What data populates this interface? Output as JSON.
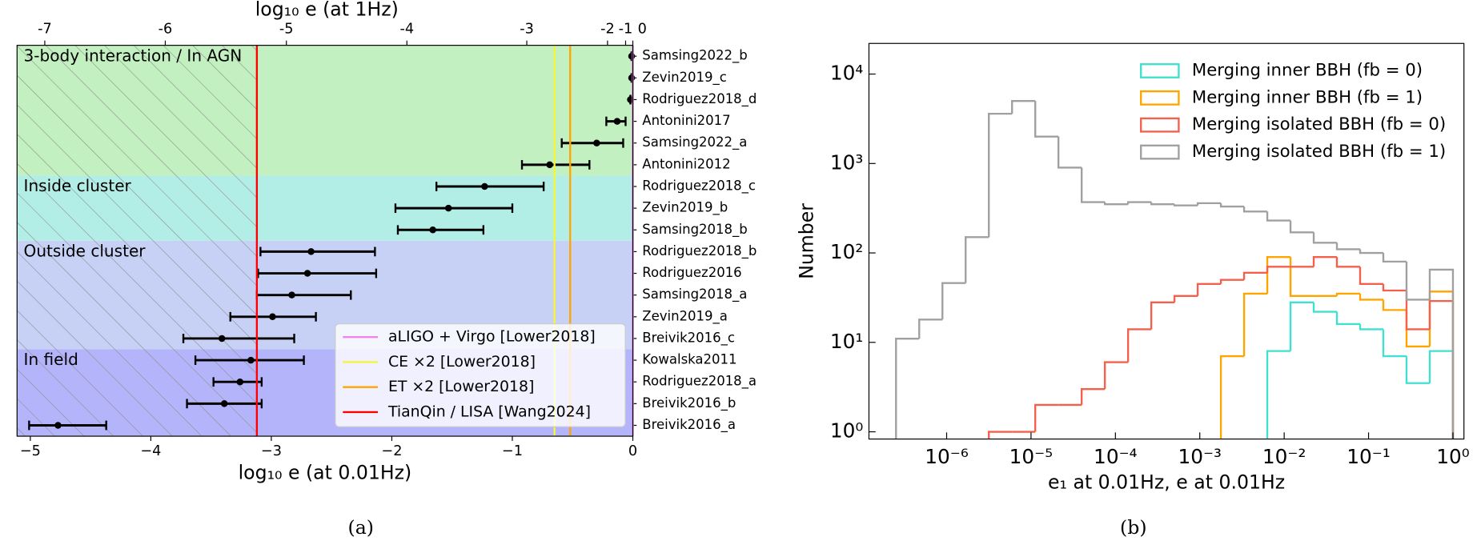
{
  "chart_data": [
    {
      "type": "errorbar",
      "xlabel": "log₁₀ e (at 0.01Hz)",
      "x2label": "log₁₀ e (at 1Hz)",
      "panel": "(a)",
      "xlim": [
        -5.11,
        0
      ],
      "xticks": [
        {
          "value": -5,
          "label": "−5"
        },
        {
          "value": -4,
          "label": "−4"
        },
        {
          "value": -3,
          "label": "−3"
        },
        {
          "value": -2,
          "label": "−2"
        },
        {
          "value": -1,
          "label": "−1"
        },
        0
      ],
      "x2ticks": [
        {
          "value": -4.88,
          "label": "-7"
        },
        {
          "value": -3.88,
          "label": "-6"
        },
        {
          "value": -2.875,
          "label": "-5"
        },
        {
          "value": -1.875,
          "label": "-4"
        },
        {
          "value": -0.88,
          "label": "-3"
        },
        {
          "value": -0.21,
          "label": "-2"
        },
        {
          "value": -0.06,
          "label": "-1"
        },
        0
      ],
      "groups": [
        {
          "name": "3-body interaction / In AGN",
          "color": "#c3f0c0",
          "categories": [
            "Samsing2022_b",
            "Zevin2019_c",
            "Rodriguez2018_d",
            "Antonini2017",
            "Samsing2022_a",
            "Antonini2012"
          ],
          "values": [
            -0.01,
            -0.01,
            -0.02,
            -0.13,
            -0.3,
            -0.69
          ],
          "lower": [
            -0.01,
            -0.01,
            -0.02,
            -0.22,
            -0.59,
            -0.92
          ],
          "upper": [
            -0.01,
            -0.01,
            -0.02,
            -0.06,
            -0.08,
            -0.36
          ]
        },
        {
          "name": "Inside cluster",
          "color": "#b3eee6",
          "categories": [
            "Rodriguez2018_c",
            "Zevin2019_b",
            "Samsing2018_b"
          ],
          "values": [
            -1.23,
            -1.53,
            -1.66
          ],
          "lower": [
            -1.63,
            -1.97,
            -1.95
          ],
          "upper": [
            -0.74,
            -1.0,
            -1.24
          ]
        },
        {
          "name": "Outside cluster",
          "color": "#c6d1f5",
          "categories": [
            "Rodriguez2018_b",
            "Rodriguez2016",
            "Samsing2018_a",
            "Zevin2019_a",
            "Breivik2016_c"
          ],
          "values": [
            -2.67,
            -2.7,
            -2.83,
            -2.99,
            -3.41
          ],
          "lower": [
            -3.09,
            -3.11,
            -3.12,
            -3.34,
            -3.73
          ],
          "upper": [
            -2.14,
            -2.13,
            -2.34,
            -2.63,
            -2.81
          ]
        },
        {
          "name": "In field",
          "color": "#b4b4fa",
          "categories": [
            "Kowalska2011",
            "Rodriguez2018_a",
            "Breivik2016_b",
            "Breivik2016_a"
          ],
          "values": [
            -3.17,
            -3.26,
            -3.39,
            -4.77
          ],
          "lower": [
            -3.63,
            -3.48,
            -3.7,
            -5.01
          ],
          "upper": [
            -2.73,
            -3.08,
            -3.08,
            -4.37
          ]
        }
      ],
      "lines": [
        {
          "name": "aLIGO + Virgo [Lower2018]",
          "color": "#ee82ee",
          "value": 0
        },
        {
          "name": "CE ×2 [Lower2018]",
          "color": "#f5f53a",
          "value": -0.65
        },
        {
          "name": "ET ×2 [Lower2018]",
          "color": "#ffa500",
          "value": -0.52
        },
        {
          "name": "TianQin / LISA [Wang2024]",
          "color": "#ff0000",
          "value": -3.12
        }
      ],
      "legend": "lower right"
    },
    {
      "type": "histogram",
      "xlabel": "e₁ at 0.01Hz, e at 0.01Hz",
      "ylabel": "Number",
      "panel": "(b)",
      "xscale": "log",
      "yscale": "log",
      "xlim": [
        1.2e-07,
        1.35
      ],
      "ylim": [
        0.83,
        22000
      ],
      "xticks": [
        {
          "value": 1e-06,
          "label": "10⁻⁶"
        },
        {
          "value": 1e-05,
          "label": "10⁻⁵"
        },
        {
          "value": 0.0001,
          "label": "10⁻⁴"
        },
        {
          "value": 0.001,
          "label": "10⁻³"
        },
        {
          "value": 0.01,
          "label": "10⁻²"
        },
        {
          "value": 0.1,
          "label": "10⁻¹"
        },
        {
          "value": 1,
          "label": "10⁰"
        }
      ],
      "yticks": [
        {
          "value": 1,
          "label": "10⁰"
        },
        {
          "value": 10,
          "label": "10¹"
        },
        {
          "value": 100,
          "label": "10²"
        },
        {
          "value": 1000,
          "label": "10³"
        },
        {
          "value": 10000,
          "label": "10⁴"
        }
      ],
      "bins": [
        2.512e-07,
        4.732e-07,
        8.913e-07,
        1.679e-06,
        3.162e-06,
        5.957e-06,
        1.122e-05,
        2.113e-05,
        3.981e-05,
        7.499e-05,
        0.0001413,
        0.0002661,
        0.0005012,
        0.0009441,
        0.001778,
        0.00335,
        0.00631,
        0.01189,
        0.02239,
        0.04217,
        0.07943,
        0.1496,
        0.2818,
        0.5309,
        1
      ],
      "series": [
        {
          "name": "Merging inner BBH (fb = 0)",
          "color": "#40e0d0",
          "values": [
            null,
            null,
            null,
            null,
            null,
            null,
            null,
            null,
            null,
            null,
            null,
            null,
            null,
            null,
            null,
            null,
            8,
            28,
            22,
            16,
            14,
            7,
            3.5,
            8
          ]
        },
        {
          "name": "Merging inner BBH (fb = 1)",
          "color": "#ffa500",
          "values": [
            null,
            null,
            null,
            null,
            null,
            null,
            null,
            null,
            null,
            null,
            null,
            null,
            null,
            null,
            7,
            35,
            90,
            33,
            33,
            35,
            30,
            23,
            9,
            37
          ]
        },
        {
          "name": "Merging isolated BBH (fb = 0)",
          "color": "#f4604c",
          "values": [
            null,
            null,
            null,
            null,
            1,
            1,
            2,
            2,
            3,
            6,
            14,
            28,
            33,
            45,
            50,
            60,
            70,
            70,
            90,
            70,
            45,
            38,
            14,
            29
          ]
        },
        {
          "name": "Merging isolated BBH (fb = 1)",
          "color": "#a0a0a0",
          "values": [
            11,
            18,
            46,
            150,
            3600,
            5000,
            2000,
            900,
            370,
            350,
            370,
            350,
            340,
            360,
            330,
            290,
            230,
            170,
            130,
            110,
            100,
            80,
            30,
            65
          ]
        }
      ],
      "legend": "upper right"
    }
  ]
}
